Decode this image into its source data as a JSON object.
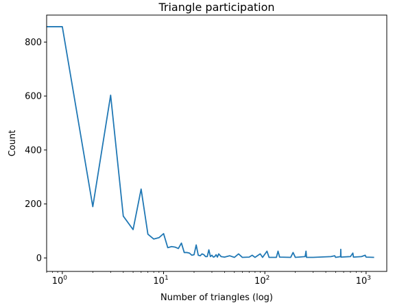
{
  "chart_data": {
    "type": "line",
    "title": "Triangle participation",
    "xlabel": "Number of triangles (log)",
    "ylabel": "Count",
    "xscale": "log",
    "xlim": [
      0.7,
      1600
    ],
    "ylim": [
      -50,
      900
    ],
    "x_ticks": [
      {
        "value": 1,
        "base": "10",
        "exp": "0"
      },
      {
        "value": 10,
        "base": "10",
        "exp": "1"
      },
      {
        "value": 100,
        "base": "10",
        "exp": "2"
      },
      {
        "value": 1000,
        "base": "10",
        "exp": "3"
      }
    ],
    "y_ticks": [
      0,
      200,
      400,
      600,
      800
    ],
    "grid": false,
    "line_color": "#1f77b4",
    "series": [
      {
        "points": [
          [
            0.5,
            857
          ],
          [
            1,
            857
          ],
          [
            2,
            190
          ],
          [
            3,
            603
          ],
          [
            4,
            155
          ],
          [
            5,
            105
          ],
          [
            6,
            255
          ],
          [
            7,
            88
          ],
          [
            8,
            70
          ],
          [
            9,
            75
          ],
          [
            10,
            90
          ],
          [
            11,
            38
          ],
          [
            12,
            42
          ],
          [
            13,
            40
          ],
          [
            14,
            35
          ],
          [
            15,
            55
          ],
          [
            16,
            20
          ],
          [
            17,
            20
          ],
          [
            18,
            18
          ],
          [
            19,
            10
          ],
          [
            20,
            12
          ],
          [
            21,
            48
          ],
          [
            22,
            10
          ],
          [
            23,
            8
          ],
          [
            24,
            15
          ],
          [
            25,
            12
          ],
          [
            26,
            5
          ],
          [
            27,
            5
          ],
          [
            28,
            30
          ],
          [
            29,
            5
          ],
          [
            30,
            10
          ],
          [
            31,
            3
          ],
          [
            32,
            5
          ],
          [
            33,
            12
          ],
          [
            34,
            3
          ],
          [
            35,
            15
          ],
          [
            37,
            5
          ],
          [
            40,
            3
          ],
          [
            45,
            8
          ],
          [
            50,
            2
          ],
          [
            55,
            15
          ],
          [
            60,
            2
          ],
          [
            70,
            3
          ],
          [
            75,
            10
          ],
          [
            80,
            2
          ],
          [
            90,
            15
          ],
          [
            95,
            2
          ],
          [
            105,
            25
          ],
          [
            110,
            2
          ],
          [
            130,
            2
          ],
          [
            135,
            25
          ],
          [
            140,
            3
          ],
          [
            180,
            2
          ],
          [
            190,
            20
          ],
          [
            200,
            2
          ],
          [
            250,
            5
          ],
          [
            255,
            25
          ],
          [
            258,
            2
          ],
          [
            300,
            2
          ],
          [
            450,
            5
          ],
          [
            490,
            8
          ],
          [
            500,
            2
          ],
          [
            560,
            5
          ],
          [
            562,
            32
          ],
          [
            565,
            3
          ],
          [
            700,
            5
          ],
          [
            740,
            18
          ],
          [
            750,
            3
          ],
          [
            900,
            5
          ],
          [
            980,
            10
          ],
          [
            1000,
            3
          ],
          [
            1200,
            2
          ]
        ]
      }
    ]
  }
}
